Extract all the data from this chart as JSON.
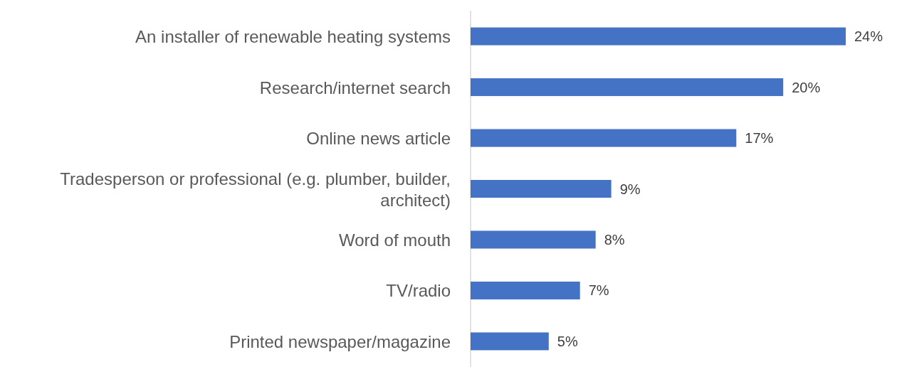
{
  "chart_data": {
    "type": "bar",
    "orientation": "horizontal",
    "categories": [
      "An installer of renewable heating systems",
      "Research/internet search",
      "Online news article",
      "Tradesperson or professional (e.g. plumber, builder, architect)",
      "Word of mouth",
      "TV/radio",
      "Printed newspaper/magazine"
    ],
    "values": [
      24,
      20,
      17,
      9,
      8,
      7,
      5
    ],
    "value_labels": [
      "24%",
      "20%",
      "17%",
      "9%",
      "8%",
      "7%",
      "5%"
    ],
    "color": "#4472c4"
  }
}
